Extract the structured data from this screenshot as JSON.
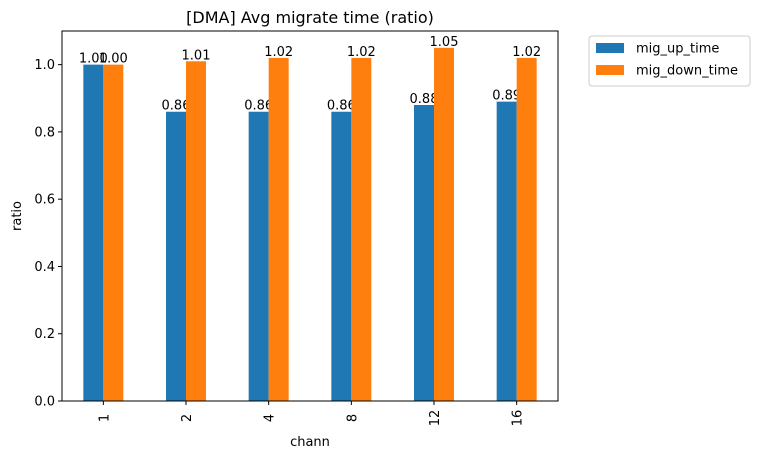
{
  "chart_data": {
    "type": "bar",
    "title": "[DMA] Avg migrate time (ratio)",
    "xlabel": "chann",
    "ylabel": "ratio",
    "categories": [
      "1",
      "2",
      "4",
      "8",
      "12",
      "16"
    ],
    "series": [
      {
        "name": "mig_up_time",
        "color": "#1f77b4",
        "values": [
          1.0,
          0.86,
          0.86,
          0.86,
          0.88,
          0.89
        ],
        "labels": [
          "1.00",
          "0.86",
          "0.86",
          "0.86",
          "0.88",
          "0.89"
        ]
      },
      {
        "name": "mig_down_time",
        "color": "#ff7f0e",
        "values": [
          1.0,
          1.01,
          1.02,
          1.02,
          1.05,
          1.02
        ],
        "labels": [
          "1.00",
          "1.01",
          "1.02",
          "1.02",
          "1.05",
          "1.02"
        ]
      }
    ],
    "ylim": [
      0,
      1.1
    ],
    "yticks": [
      "0.0",
      "0.2",
      "0.4",
      "0.6",
      "0.8",
      "1.0"
    ],
    "grid": false,
    "legend_position": "outside-top-right"
  }
}
